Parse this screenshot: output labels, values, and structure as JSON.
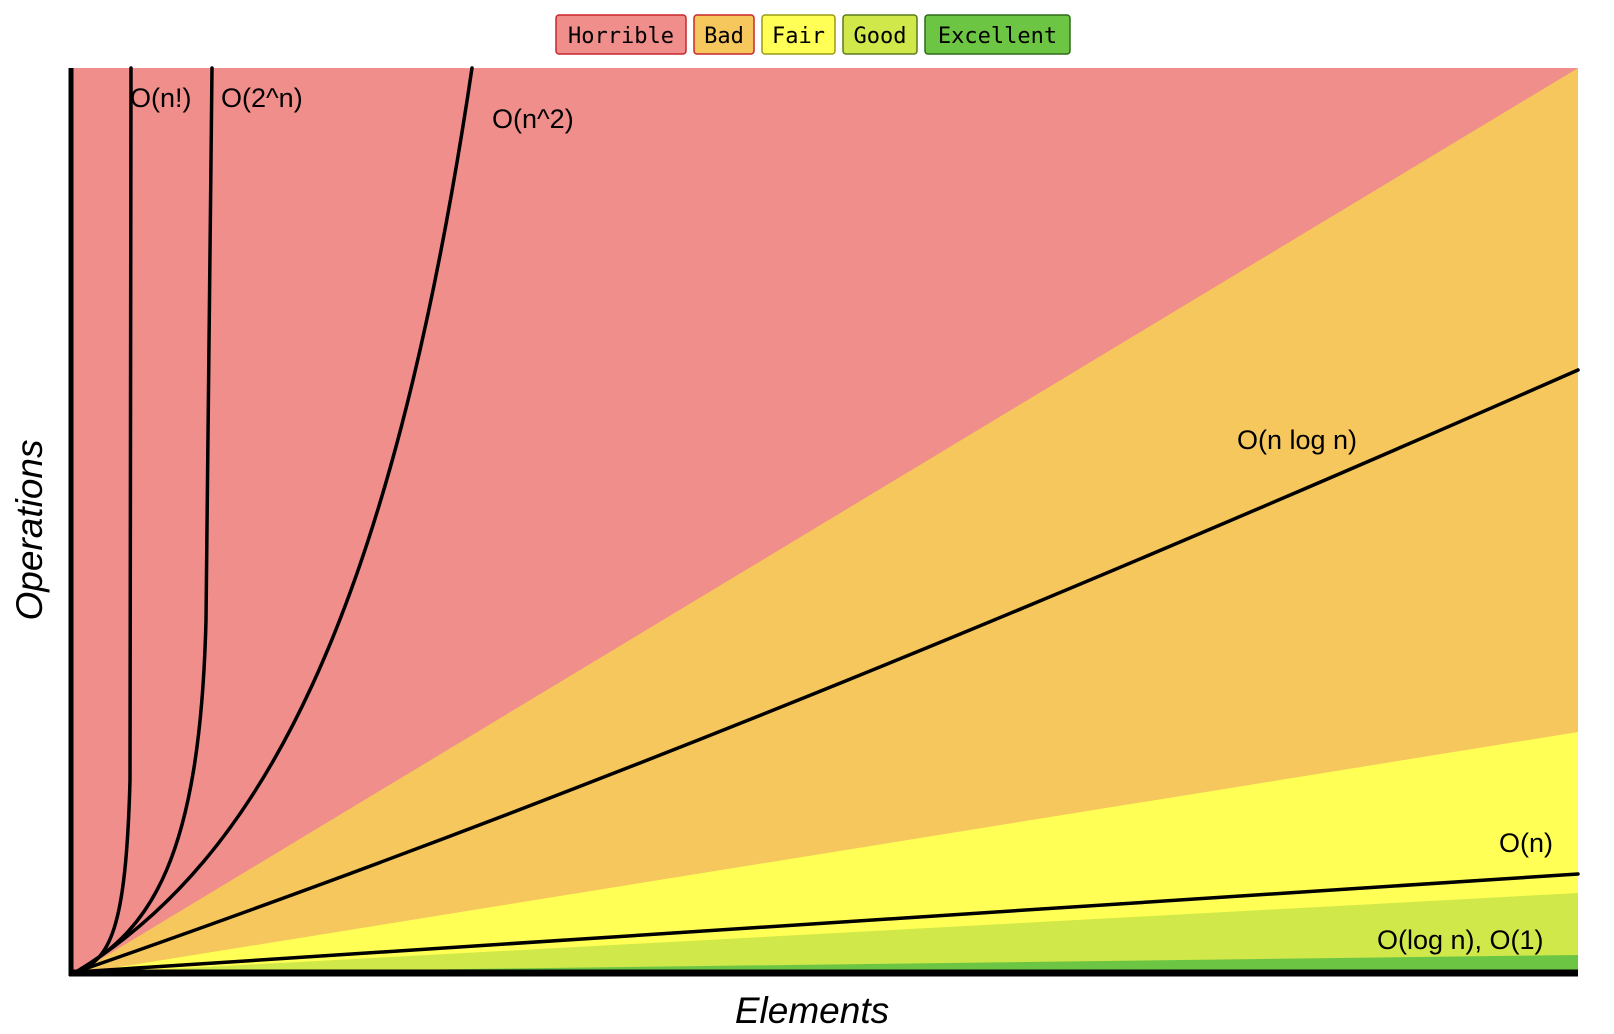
{
  "chart_data": {
    "type": "area",
    "title": "",
    "xlabel": "Elements",
    "ylabel": "Operations",
    "x_ticks": false,
    "y_ticks": false,
    "grid": false,
    "legend_position": "top-center",
    "legend": [
      {
        "label": "Horrible",
        "color": "#ef8e8a",
        "border": "#c9262d"
      },
      {
        "label": "Bad",
        "color": "#f6c75d",
        "border": "#c9262d"
      },
      {
        "label": "Fair",
        "color": "#ffff55",
        "border": "#9a9a16"
      },
      {
        "label": "Good",
        "color": "#d0e84a",
        "border": "#5b7a1c"
      },
      {
        "label": "Excellent",
        "color": "#6cc644",
        "border": "#2e6a18"
      }
    ],
    "regions": [
      {
        "rating": "Horrible",
        "color": "#ef8e8a"
      },
      {
        "rating": "Bad",
        "color": "#f6c75d"
      },
      {
        "rating": "Fair",
        "color": "#ffff55"
      },
      {
        "rating": "Good",
        "color": "#d0e84a"
      },
      {
        "rating": "Excellent",
        "color": "#6cc644"
      }
    ],
    "curves": [
      {
        "label": "O(n!)",
        "function": "factorial"
      },
      {
        "label": "O(2^n)",
        "function": "exponential"
      },
      {
        "label": "O(n^2)",
        "function": "quadratic"
      },
      {
        "label": "O(n log n)",
        "function": "linearithmic"
      },
      {
        "label": "O(n)",
        "function": "linear"
      },
      {
        "label": "O(log n), O(1)",
        "function": "logarithmic-constant"
      }
    ]
  }
}
